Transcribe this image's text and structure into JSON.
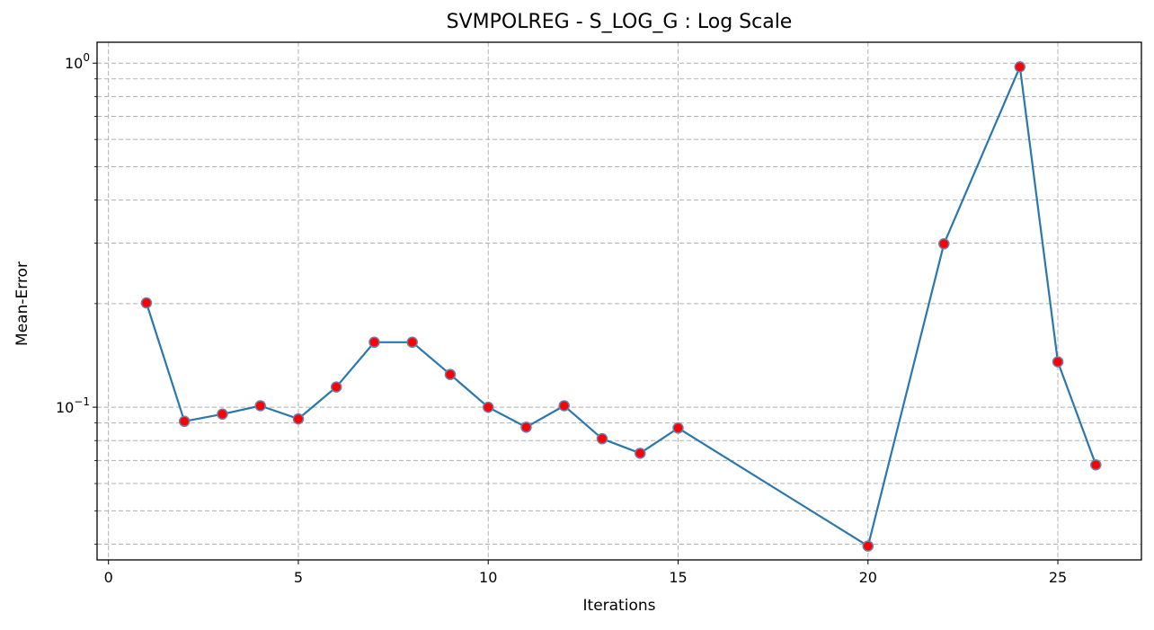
{
  "chart_data": {
    "type": "line",
    "title": "SVMPOLREG - S_LOG_G : Log Scale",
    "xlabel": "Iterations",
    "ylabel": "Mean-Error",
    "xlim": [
      -0.3,
      27.2
    ],
    "ylim": [
      0.036,
      1.15
    ],
    "yscale": "log",
    "grid": true,
    "x_ticks": [
      0,
      5,
      10,
      15,
      20,
      25
    ],
    "y_major_ticks": [
      {
        "value": 0.1,
        "base": "10",
        "exp": "−1"
      },
      {
        "value": 1,
        "base": "10",
        "exp": "0"
      }
    ],
    "y_minor_ticks": [
      0.04,
      0.05,
      0.06,
      0.07,
      0.08,
      0.09,
      0.2,
      0.3,
      0.4,
      0.5,
      0.6,
      0.7,
      0.8,
      0.9
    ],
    "series": [
      {
        "x": [
          1,
          2,
          3,
          4,
          5,
          6,
          7,
          8,
          9,
          10,
          11,
          12,
          13,
          14,
          15,
          20,
          22,
          24,
          25,
          26
        ],
        "values": [
          0.201,
          0.091,
          0.0955,
          0.101,
          0.0925,
          0.1145,
          0.1545,
          0.1545,
          0.1245,
          0.1,
          0.0875,
          0.101,
          0.081,
          0.0735,
          0.087,
          0.0395,
          0.2985,
          0.9755,
          0.1355,
          0.068
        ],
        "line_color": "#2a77ad",
        "marker_face_color": "#ff0000",
        "marker_edge_color": "#6b7fae"
      }
    ]
  }
}
